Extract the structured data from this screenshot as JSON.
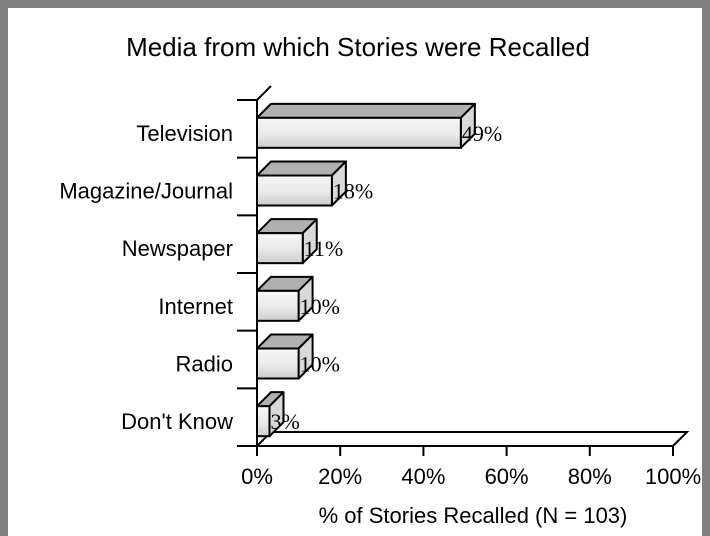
{
  "chart_data": {
    "type": "bar",
    "orientation": "horizontal",
    "style": "3d",
    "title": "Media from which Stories were Recalled",
    "xlabel": "% of Stories Recalled (N = 103)",
    "ylabel": "",
    "categories": [
      "Television",
      "Magazine/Journal",
      "Newspaper",
      "Internet",
      "Radio",
      "Don't Know"
    ],
    "values": [
      49,
      18,
      11,
      10,
      10,
      3
    ],
    "data_labels": [
      "49%",
      "18%",
      "11%",
      "10%",
      "10%",
      "3%"
    ],
    "xlim": [
      0,
      100
    ],
    "xticks": [
      0,
      20,
      40,
      60,
      80,
      100
    ],
    "xtick_labels": [
      "0%",
      "20%",
      "40%",
      "60%",
      "80%",
      "100%"
    ],
    "grid": false,
    "legend": "none",
    "colors": {
      "bar_front_light": "#f4f4f4",
      "bar_front_dark": "#cfcfcf",
      "bar_top": "#b0b0b0",
      "bar_side": "#d9d9d9",
      "frame": "#808080"
    }
  }
}
